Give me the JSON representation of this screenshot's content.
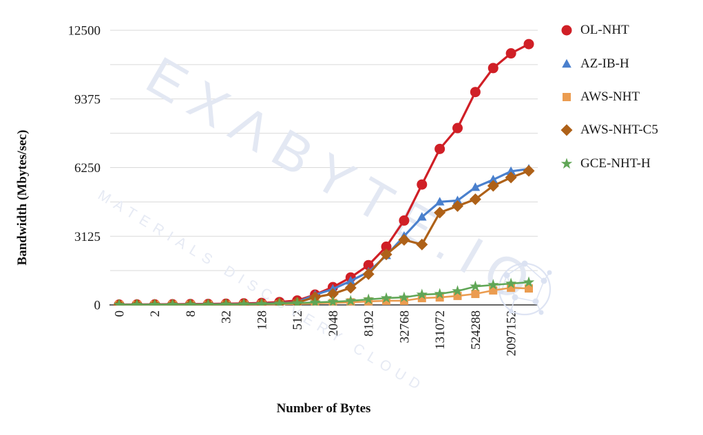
{
  "watermark": {
    "brand": "EXΛBYTE.IO",
    "tagline": "MATERIALS DISCOVERY CLOUD"
  },
  "chart_data": {
    "type": "line",
    "title": "",
    "xlabel": "Number of Bytes",
    "ylabel": "Bandwidth (Mbytes/sec)",
    "grid": "horizontal",
    "legend_position": "right",
    "ylim": [
      0,
      12500
    ],
    "y_ticks": [
      0,
      3125,
      6250,
      9375,
      12500
    ],
    "y_minor_step": 1562.5,
    "x": [
      0,
      1,
      2,
      4,
      8,
      16,
      32,
      64,
      128,
      256,
      512,
      1024,
      2048,
      4096,
      8192,
      16384,
      32768,
      65536,
      131072,
      262144,
      524288,
      1048576,
      2097152,
      4194304
    ],
    "x_tick_labels": [
      "0",
      "2",
      "8",
      "32",
      "128",
      "512",
      "2048",
      "8192",
      "32768",
      "131072",
      "524288",
      "2097152"
    ],
    "x_label_every": 2,
    "series": [
      {
        "name": "OL-NHT",
        "marker": "circle",
        "color": "#d01f26",
        "line_width": 3.2,
        "values": [
          15,
          20,
          25,
          30,
          40,
          45,
          55,
          70,
          90,
          130,
          200,
          470,
          810,
          1250,
          1810,
          2650,
          3840,
          5480,
          7100,
          8050,
          9690,
          10780,
          11450,
          11870
        ]
      },
      {
        "name": "AZ-IB-H",
        "marker": "triangle",
        "color": "#4a80cd",
        "line_width": 3.2,
        "values": [
          8,
          10,
          12,
          15,
          20,
          25,
          32,
          42,
          60,
          85,
          130,
          460,
          720,
          1090,
          1500,
          2250,
          3130,
          4000,
          4690,
          4750,
          5350,
          5700,
          6080,
          6190
        ]
      },
      {
        "name": "AWS-NHT",
        "marker": "square",
        "color": "#eb9c50",
        "line_width": 2.6,
        "values": [
          2,
          3,
          4,
          6,
          8,
          10,
          12,
          15,
          20,
          28,
          45,
          70,
          90,
          115,
          160,
          190,
          190,
          310,
          340,
          410,
          500,
          660,
          780,
          750
        ]
      },
      {
        "name": "AWS-NHT-C5",
        "marker": "diamond",
        "color": "#ae6118",
        "line_width": 3.2,
        "values": [
          3,
          5,
          7,
          9,
          12,
          16,
          22,
          30,
          45,
          70,
          110,
          350,
          500,
          780,
          1400,
          2300,
          2960,
          2750,
          4200,
          4500,
          4810,
          5420,
          5800,
          6100
        ]
      },
      {
        "name": "GCE-NHT-H",
        "marker": "star",
        "color": "#60a656",
        "line_width": 2.6,
        "values": [
          5,
          7,
          9,
          11,
          14,
          18,
          24,
          32,
          42,
          60,
          85,
          115,
          145,
          185,
          250,
          310,
          340,
          470,
          500,
          630,
          840,
          910,
          970,
          1030
        ]
      }
    ],
    "colors": {
      "gridline": "#d9d9d9",
      "axis_line": "#4f4f4f",
      "tick_text": "#1b1b1b",
      "watermark": "#dde4f2"
    }
  }
}
